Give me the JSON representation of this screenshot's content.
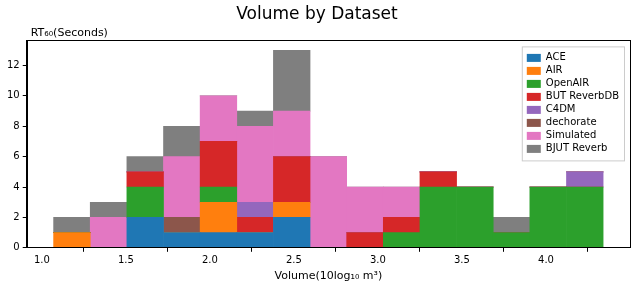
{
  "chart_data": {
    "type": "histogram",
    "title": "Volume by Dataset",
    "x_label": "Volume(10log₁₀ m³)",
    "y_label": "RT₆₀(Seconds)",
    "bins": [
      1.07,
      1.288,
      1.506,
      1.724,
      1.942,
      2.16,
      2.378,
      2.596,
      2.814,
      3.032,
      3.25,
      3.468,
      3.686,
      3.904,
      4.122,
      4.34
    ],
    "series": [
      {
        "name": "ACE",
        "color": "#1f77b4",
        "values": [
          0,
          0,
          2,
          1,
          1,
          1,
          2,
          0,
          0,
          0,
          0,
          0,
          0,
          0,
          0
        ]
      },
      {
        "name": "AIR",
        "color": "#ff7f0e",
        "values": [
          1,
          0,
          0,
          0,
          2,
          0,
          1,
          0,
          0,
          0,
          0,
          0,
          0,
          0,
          0
        ]
      },
      {
        "name": "OpenAIR",
        "color": "#2ca02c",
        "values": [
          0,
          0,
          2,
          0,
          1,
          0,
          0,
          0,
          0,
          1,
          4,
          4,
          1,
          4,
          4
        ]
      },
      {
        "name": "BUT ReverbDB",
        "color": "#d62728",
        "values": [
          0,
          0,
          1,
          0,
          3,
          1,
          3,
          0,
          1,
          1,
          1,
          0,
          0,
          0,
          0
        ]
      },
      {
        "name": "C4DM",
        "color": "#9467bd",
        "values": [
          0,
          0,
          0,
          0,
          0,
          1,
          0,
          0,
          0,
          0,
          0,
          0,
          0,
          0,
          1
        ]
      },
      {
        "name": "dechorate",
        "color": "#8c564b",
        "values": [
          0,
          0,
          0,
          1,
          0,
          0,
          0,
          0,
          0,
          0,
          0,
          0,
          0,
          0,
          0
        ]
      },
      {
        "name": "Simulated",
        "color": "#e377c2",
        "values": [
          0,
          2,
          0,
          4,
          3,
          5,
          3,
          6,
          3,
          2,
          0,
          0,
          0,
          0,
          0
        ]
      },
      {
        "name": "BJUT Reverb",
        "color": "#7f7f7f",
        "values": [
          1,
          1,
          1,
          2,
          0,
          1,
          4,
          0,
          0,
          0,
          0,
          0,
          1,
          0,
          0
        ]
      }
    ],
    "stacked": true,
    "xlim": [
      0.91,
      4.5
    ],
    "ylim": [
      0,
      13.65
    ],
    "xticks": [
      {
        "value": 1,
        "label": "1.0"
      },
      {
        "value": 1.5,
        "label": "1.5"
      },
      {
        "value": 2,
        "label": "2.0"
      },
      {
        "value": 2.5,
        "label": "2.5"
      },
      {
        "value": 3,
        "label": "3.0"
      },
      {
        "value": 3.5,
        "label": "3.5"
      },
      {
        "value": 4,
        "label": "4.0"
      }
    ],
    "yticks": [
      0,
      2,
      4,
      6,
      8,
      10,
      12
    ],
    "grid": false,
    "legend": "upper right"
  }
}
